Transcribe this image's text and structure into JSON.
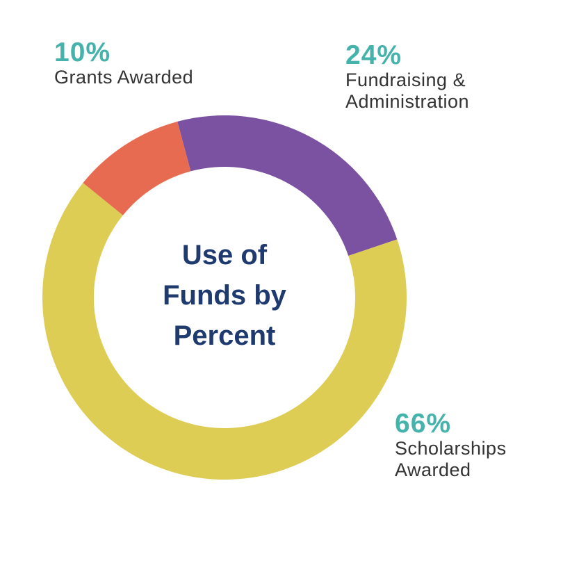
{
  "chart_data": {
    "type": "pie",
    "title": "Use of Funds by Percent",
    "title_lines": [
      "Use of",
      "Funds by",
      "Percent"
    ],
    "style": "donut",
    "slices": [
      {
        "label": "Fundraising & Administration",
        "label_lines": [
          "Fundraising &",
          "Administration"
        ],
        "value": 24,
        "display": "24%",
        "color": "#7b51a1"
      },
      {
        "label": "Scholarships Awarded",
        "label_lines": [
          "Scholarships",
          "Awarded"
        ],
        "value": 66,
        "display": "66%",
        "color": "#ddcd55"
      },
      {
        "label": "Grants Awarded",
        "label_lines": [
          "Grants Awarded"
        ],
        "value": 10,
        "display": "10%",
        "color": "#e76b50"
      }
    ]
  },
  "colors": {
    "title": "#1e3a6e",
    "percent": "#45b3ab",
    "label": "#333333",
    "background": "#ffffff"
  }
}
